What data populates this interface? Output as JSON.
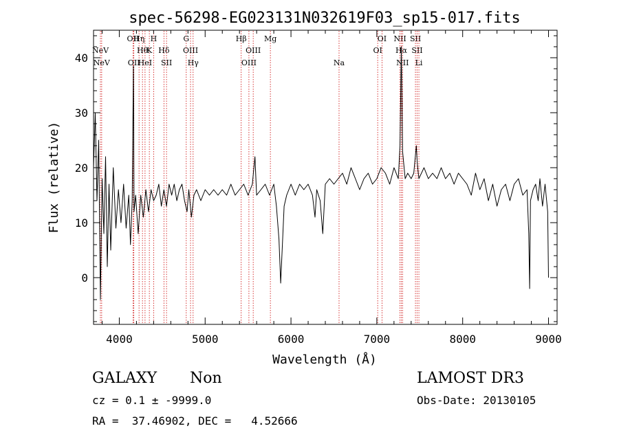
{
  "chart_data": {
    "type": "line",
    "title": "spec-56298-EG023131N032619F03_sp15-017.fits",
    "xlabel": "Wavelength (Å)",
    "ylabel": "Flux (relative)",
    "xlim": [
      3700,
      9100
    ],
    "ylim": [
      -8.5,
      45
    ],
    "x_ticks": [
      4000,
      5000,
      6000,
      7000,
      8000,
      9000
    ],
    "x_tick_labels": [
      "4000",
      "5000",
      "6000",
      "7000",
      "8000",
      "9000"
    ],
    "y_ticks": [
      0,
      10,
      20,
      30,
      40
    ],
    "y_tick_labels": [
      "0",
      "10",
      "20",
      "30",
      "40"
    ],
    "grid": false,
    "colors": {
      "spectrum": "#000000",
      "line_marker": "#cc0000",
      "text": "#000000"
    },
    "series": [
      {
        "values": [
          [
            3700,
            20
          ],
          [
            3720,
            30
          ],
          [
            3740,
            14
          ],
          [
            3760,
            25
          ],
          [
            3780,
            -4
          ],
          [
            3800,
            18
          ],
          [
            3820,
            8
          ],
          [
            3840,
            22
          ],
          [
            3860,
            2
          ],
          [
            3880,
            17
          ],
          [
            3900,
            5
          ],
          [
            3930,
            20
          ],
          [
            3960,
            9
          ],
          [
            3990,
            16
          ],
          [
            4020,
            10
          ],
          [
            4050,
            17
          ],
          [
            4080,
            9
          ],
          [
            4110,
            15
          ],
          [
            4130,
            6
          ],
          [
            4150,
            14
          ],
          [
            4165,
            38.5
          ],
          [
            4172,
            12
          ],
          [
            4190,
            15
          ],
          [
            4220,
            8
          ],
          [
            4250,
            15
          ],
          [
            4280,
            11
          ],
          [
            4310,
            16
          ],
          [
            4340,
            12
          ],
          [
            4370,
            16
          ],
          [
            4400,
            14
          ],
          [
            4430,
            15
          ],
          [
            4460,
            17
          ],
          [
            4490,
            13
          ],
          [
            4520,
            16
          ],
          [
            4550,
            13
          ],
          [
            4580,
            17
          ],
          [
            4610,
            15
          ],
          [
            4640,
            17
          ],
          [
            4670,
            14
          ],
          [
            4700,
            16
          ],
          [
            4730,
            17
          ],
          [
            4760,
            14
          ],
          [
            4790,
            12
          ],
          [
            4810,
            16
          ],
          [
            4840,
            11
          ],
          [
            4870,
            15
          ],
          [
            4900,
            16
          ],
          [
            4950,
            14
          ],
          [
            5000,
            16
          ],
          [
            5050,
            15
          ],
          [
            5100,
            16
          ],
          [
            5150,
            15
          ],
          [
            5200,
            16
          ],
          [
            5250,
            15
          ],
          [
            5300,
            17
          ],
          [
            5350,
            15
          ],
          [
            5400,
            16
          ],
          [
            5450,
            17
          ],
          [
            5500,
            15
          ],
          [
            5550,
            17
          ],
          [
            5580,
            22
          ],
          [
            5600,
            15
          ],
          [
            5650,
            16
          ],
          [
            5700,
            17
          ],
          [
            5750,
            15
          ],
          [
            5800,
            17
          ],
          [
            5830,
            13
          ],
          [
            5860,
            7
          ],
          [
            5880,
            -1
          ],
          [
            5900,
            6
          ],
          [
            5920,
            13
          ],
          [
            5950,
            15
          ],
          [
            6000,
            17
          ],
          [
            6050,
            15
          ],
          [
            6100,
            17
          ],
          [
            6150,
            16
          ],
          [
            6200,
            17
          ],
          [
            6250,
            15
          ],
          [
            6280,
            11
          ],
          [
            6300,
            16
          ],
          [
            6340,
            14
          ],
          [
            6370,
            8
          ],
          [
            6400,
            17
          ],
          [
            6450,
            18
          ],
          [
            6500,
            17
          ],
          [
            6550,
            18
          ],
          [
            6600,
            19
          ],
          [
            6650,
            17
          ],
          [
            6700,
            20
          ],
          [
            6750,
            18
          ],
          [
            6800,
            16
          ],
          [
            6850,
            18
          ],
          [
            6900,
            19
          ],
          [
            6950,
            17
          ],
          [
            7000,
            18
          ],
          [
            7050,
            20
          ],
          [
            7100,
            19
          ],
          [
            7150,
            17
          ],
          [
            7200,
            20
          ],
          [
            7250,
            18
          ],
          [
            7270,
            24
          ],
          [
            7285,
            42
          ],
          [
            7300,
            23
          ],
          [
            7330,
            18
          ],
          [
            7360,
            19
          ],
          [
            7400,
            18
          ],
          [
            7430,
            19
          ],
          [
            7460,
            24
          ],
          [
            7470,
            21
          ],
          [
            7490,
            18
          ],
          [
            7550,
            20
          ],
          [
            7600,
            18
          ],
          [
            7650,
            19
          ],
          [
            7700,
            18
          ],
          [
            7750,
            20
          ],
          [
            7800,
            18
          ],
          [
            7850,
            19
          ],
          [
            7900,
            17
          ],
          [
            7950,
            19
          ],
          [
            8000,
            18
          ],
          [
            8050,
            17
          ],
          [
            8100,
            15
          ],
          [
            8150,
            19
          ],
          [
            8200,
            16
          ],
          [
            8250,
            18
          ],
          [
            8300,
            14
          ],
          [
            8350,
            17
          ],
          [
            8400,
            13
          ],
          [
            8450,
            16
          ],
          [
            8500,
            17
          ],
          [
            8550,
            14
          ],
          [
            8600,
            17
          ],
          [
            8650,
            18
          ],
          [
            8700,
            15
          ],
          [
            8750,
            16
          ],
          [
            8770,
            8
          ],
          [
            8780,
            -2
          ],
          [
            8790,
            14
          ],
          [
            8820,
            16
          ],
          [
            8850,
            17
          ],
          [
            8880,
            14
          ],
          [
            8900,
            18
          ],
          [
            8930,
            13
          ],
          [
            8960,
            17
          ],
          [
            8990,
            12
          ],
          [
            9000,
            0
          ]
        ]
      }
    ],
    "line_markers": [
      {
        "x": 3780,
        "labels": [
          "NeV"
        ],
        "row": 1
      },
      {
        "x": 3795,
        "labels": [
          "NeV"
        ],
        "row": 2
      },
      {
        "x": 4160,
        "labels": [
          "OII"
        ],
        "row": 0
      },
      {
        "x": 4170,
        "labels": [
          "OII"
        ],
        "row": 2
      },
      {
        "x": 4230,
        "labels": [
          "Hη"
        ],
        "row": 0
      },
      {
        "x": 4270,
        "labels": [
          "Hθ"
        ],
        "row": 1
      },
      {
        "x": 4300,
        "labels": [
          "HeI"
        ],
        "row": 2
      },
      {
        "x": 4350,
        "labels": [
          "K"
        ],
        "row": 1
      },
      {
        "x": 4400,
        "labels": [
          "H"
        ],
        "row": 0
      },
      {
        "x": 4520,
        "labels": [
          "Hδ"
        ],
        "row": 1
      },
      {
        "x": 4550,
        "labels": [
          "SII"
        ],
        "row": 2
      },
      {
        "x": 4780,
        "labels": [
          "G"
        ],
        "row": 0
      },
      {
        "x": 4830,
        "labels": [
          "OIII"
        ],
        "row": 1
      },
      {
        "x": 4860,
        "labels": [
          "Hγ"
        ],
        "row": 2
      },
      {
        "x": 5420,
        "labels": [
          "Hβ"
        ],
        "row": 0
      },
      {
        "x": 5510,
        "labels": [
          "OIII"
        ],
        "row": 2
      },
      {
        "x": 5560,
        "labels": [
          "OIII"
        ],
        "row": 1
      },
      {
        "x": 5760,
        "labels": [
          "Mg"
        ],
        "row": 0
      },
      {
        "x": 6560,
        "labels": [
          "Na"
        ],
        "row": 2
      },
      {
        "x": 7010,
        "labels": [
          "OI"
        ],
        "row": 1
      },
      {
        "x": 7060,
        "labels": [
          "OI"
        ],
        "row": 0
      },
      {
        "x": 7270,
        "labels": [
          "NII"
        ],
        "row": 0
      },
      {
        "x": 7285,
        "labels": [
          "Hα"
        ],
        "row": 1
      },
      {
        "x": 7300,
        "labels": [
          "NII"
        ],
        "row": 2
      },
      {
        "x": 7450,
        "labels": [
          "SII"
        ],
        "row": 0
      },
      {
        "x": 7470,
        "labels": [
          "SII"
        ],
        "row": 1
      },
      {
        "x": 7490,
        "labels": [
          "Li"
        ],
        "row": 2
      }
    ]
  },
  "info": {
    "object_class": "GALAXY",
    "subclass": "Non",
    "survey": "LAMOST DR3",
    "cz_line": "cz = 0.1 ± -9999.0",
    "obs_date": "Obs-Date: 20130105",
    "radec_line": "RA =  37.46902, DEC =   4.52666"
  }
}
